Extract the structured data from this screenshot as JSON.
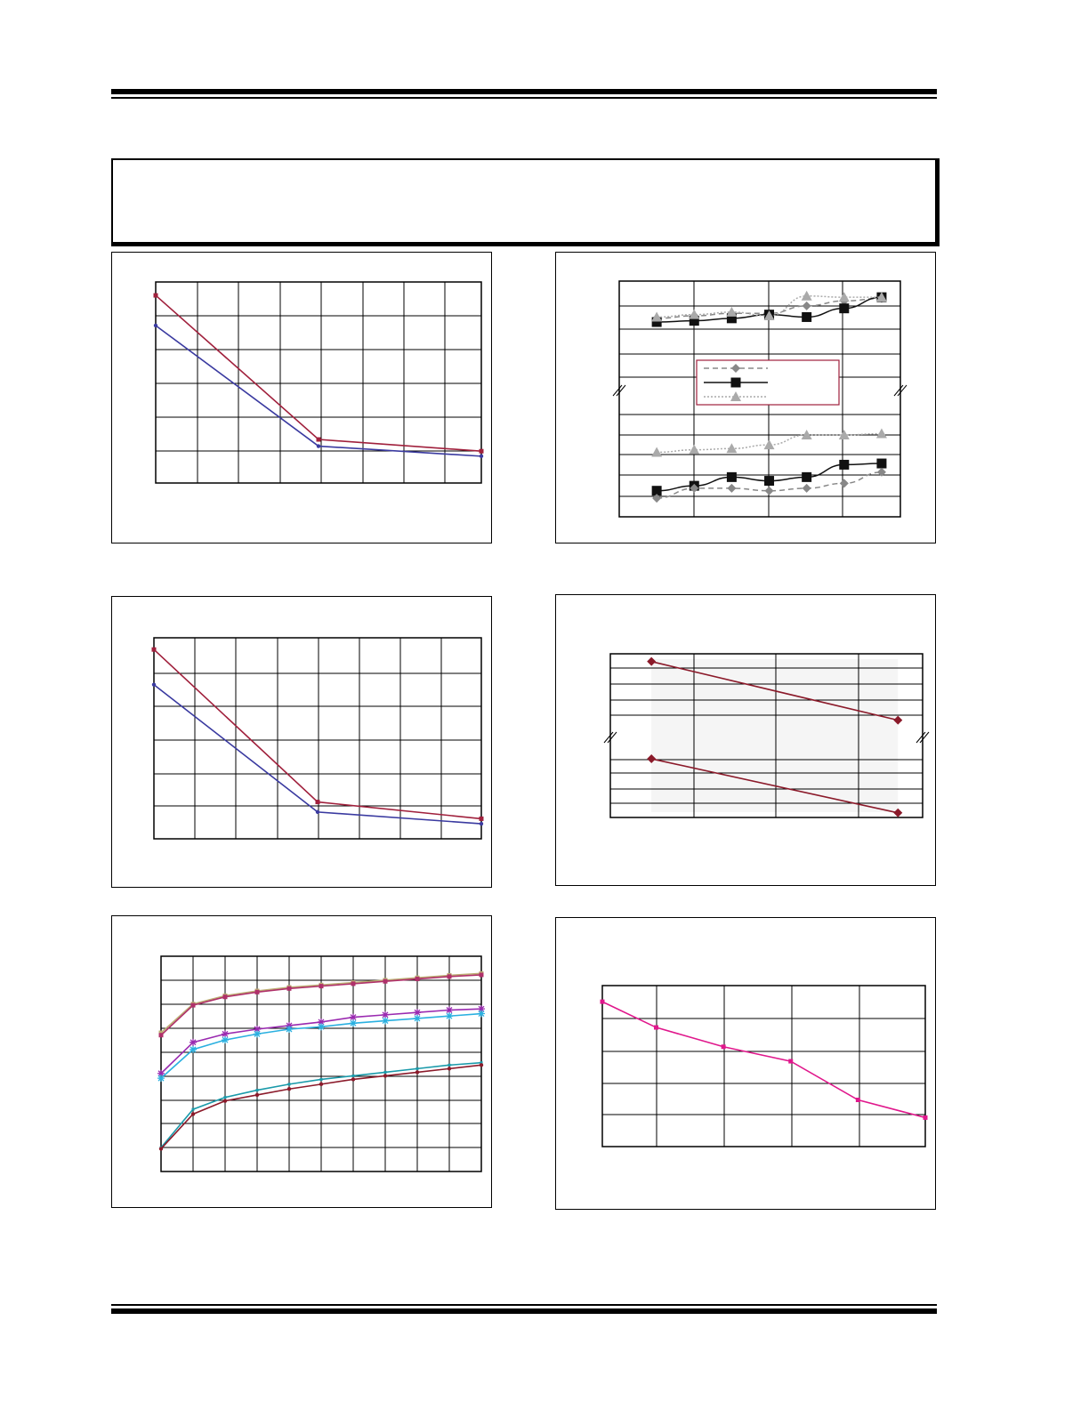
{
  "page": {
    "header_text": "",
    "footer_text": ""
  },
  "colors": {
    "red": "#a0203c",
    "blue": "#3a3aa0",
    "grid": "#000000"
  },
  "chart_data": [
    {
      "id": "chart1",
      "type": "line",
      "title": "",
      "xlabel": "",
      "ylabel": "",
      "grid": true,
      "xlim": [
        0,
        8
      ],
      "ylim": [
        0,
        6
      ],
      "series": [
        {
          "color": "#a0203c",
          "marker": "square",
          "x": [
            0,
            4,
            8
          ],
          "y": [
            5.6,
            1.3,
            0.95
          ]
        },
        {
          "color": "#3a3aa0",
          "marker": "dot",
          "x": [
            0,
            4,
            8
          ],
          "y": [
            4.7,
            1.1,
            0.8
          ]
        }
      ]
    },
    {
      "id": "chart2",
      "type": "line",
      "title": "",
      "xlabel": "",
      "ylabel": "",
      "grid": true,
      "axis_break": true,
      "xlim": [
        0,
        7.5
      ],
      "ylim": [
        0,
        9.5
      ],
      "legend": {
        "position": "center",
        "entries": [
          {
            "label": "",
            "color": "#888888",
            "style": "dashed",
            "marker": "diamond"
          },
          {
            "label": "",
            "color": "#111111",
            "style": "solid",
            "marker": "square"
          },
          {
            "label": "",
            "color": "#aaaaaa",
            "style": "dotted",
            "marker": "triangle"
          }
        ]
      },
      "series": [
        {
          "color": "#888888",
          "style": "dashed",
          "marker": "diamond",
          "x": [
            1,
            2,
            3,
            4,
            5,
            6,
            7
          ],
          "y": [
            8.0,
            8.1,
            8.2,
            8.2,
            8.5,
            8.7,
            8.8
          ]
        },
        {
          "color": "#111111",
          "style": "solid",
          "marker": "square",
          "x": [
            1,
            2,
            3,
            4,
            5,
            6,
            7
          ],
          "y": [
            7.85,
            7.9,
            8.0,
            8.15,
            8.05,
            8.4,
            8.85
          ]
        },
        {
          "color": "#aaaaaa",
          "style": "dotted",
          "marker": "triangle",
          "x": [
            1,
            2,
            3,
            4,
            5,
            6,
            7
          ],
          "y": [
            8.05,
            8.15,
            8.25,
            8.1,
            8.9,
            8.85,
            8.85
          ]
        },
        {
          "color": "#aaaaaa",
          "style": "dotted",
          "marker": "triangle",
          "x": [
            1,
            2,
            3,
            4,
            5,
            6,
            7
          ],
          "y": [
            2.6,
            2.7,
            2.75,
            2.9,
            3.3,
            3.3,
            3.35
          ]
        },
        {
          "color": "#111111",
          "style": "solid",
          "marker": "square",
          "x": [
            1,
            2,
            3,
            4,
            5,
            6,
            7
          ],
          "y": [
            1.05,
            1.25,
            1.6,
            1.45,
            1.6,
            2.1,
            2.15
          ]
        },
        {
          "color": "#888888",
          "style": "dashed",
          "marker": "diamond",
          "x": [
            1,
            2,
            3,
            4,
            5,
            6,
            7
          ],
          "y": [
            0.75,
            1.15,
            1.15,
            1.05,
            1.15,
            1.35,
            1.8
          ]
        }
      ]
    },
    {
      "id": "chart3",
      "type": "line",
      "title": "",
      "xlabel": "",
      "ylabel": "",
      "grid": true,
      "xlim": [
        0,
        8
      ],
      "ylim": [
        0,
        6
      ],
      "series": [
        {
          "color": "#a0203c",
          "marker": "square",
          "x": [
            0,
            4,
            8
          ],
          "y": [
            5.65,
            1.1,
            0.6
          ]
        },
        {
          "color": "#3a3aa0",
          "marker": "dot",
          "x": [
            0,
            4,
            8
          ],
          "y": [
            4.6,
            0.8,
            0.45
          ]
        }
      ]
    },
    {
      "id": "chart4",
      "type": "line",
      "title": "",
      "xlabel": "",
      "ylabel": "",
      "grid": true,
      "axis_break": true,
      "shaded_region": true,
      "xlim": [
        0,
        3.8
      ],
      "ylim": [
        0,
        10.6
      ],
      "series": [
        {
          "color": "#8b1a2a",
          "marker": "diamond",
          "x": [
            0.5,
            3.5
          ],
          "y": [
            10.1,
            6.3
          ]
        },
        {
          "color": "#8b1a2a",
          "marker": "diamond",
          "x": [
            0.5,
            3.5
          ],
          "y": [
            3.8,
            0.3
          ]
        }
      ]
    },
    {
      "id": "chart5",
      "type": "line",
      "title": "",
      "xlabel": "",
      "ylabel": "",
      "grid": true,
      "xlim": [
        0,
        10
      ],
      "ylim": [
        0,
        9
      ],
      "x": [
        0,
        1,
        2,
        3,
        4,
        5,
        6,
        7,
        8,
        9,
        10
      ],
      "series": [
        {
          "color": "#bcae74",
          "marker": "square",
          "y": [
            5.8,
            7.0,
            7.35,
            7.55,
            7.7,
            7.8,
            7.9,
            8.0,
            8.1,
            8.2,
            8.28
          ]
        },
        {
          "color": "#b0306a",
          "marker": "square",
          "y": [
            5.7,
            6.95,
            7.3,
            7.5,
            7.65,
            7.75,
            7.85,
            7.95,
            8.05,
            8.15,
            8.22
          ]
        },
        {
          "color": "#9a2ab0",
          "marker": "star",
          "y": [
            4.1,
            5.4,
            5.75,
            5.95,
            6.1,
            6.25,
            6.45,
            6.55,
            6.65,
            6.75,
            6.8
          ]
        },
        {
          "color": "#2ab0e0",
          "marker": "star",
          "y": [
            3.9,
            5.1,
            5.5,
            5.75,
            5.95,
            6.05,
            6.2,
            6.3,
            6.4,
            6.5,
            6.6
          ]
        },
        {
          "color": "#1a9aaa",
          "marker": "line",
          "y": [
            1.0,
            2.6,
            3.1,
            3.4,
            3.65,
            3.85,
            4.0,
            4.15,
            4.3,
            4.45,
            4.55
          ]
        },
        {
          "color": "#8b1a2a",
          "marker": "dot",
          "y": [
            0.95,
            2.4,
            2.95,
            3.2,
            3.45,
            3.65,
            3.85,
            4.0,
            4.15,
            4.3,
            4.45
          ]
        }
      ]
    },
    {
      "id": "chart6",
      "type": "line",
      "title": "",
      "xlabel": "",
      "ylabel": "",
      "grid": true,
      "xlim": [
        0,
        4.8
      ],
      "ylim": [
        0,
        5
      ],
      "series": [
        {
          "color": "#e0188c",
          "marker": "square",
          "x": [
            0,
            0.8,
            1.8,
            2.8,
            3.8,
            4.8
          ],
          "y": [
            4.5,
            3.7,
            3.1,
            2.65,
            1.45,
            0.9
          ]
        }
      ]
    }
  ]
}
